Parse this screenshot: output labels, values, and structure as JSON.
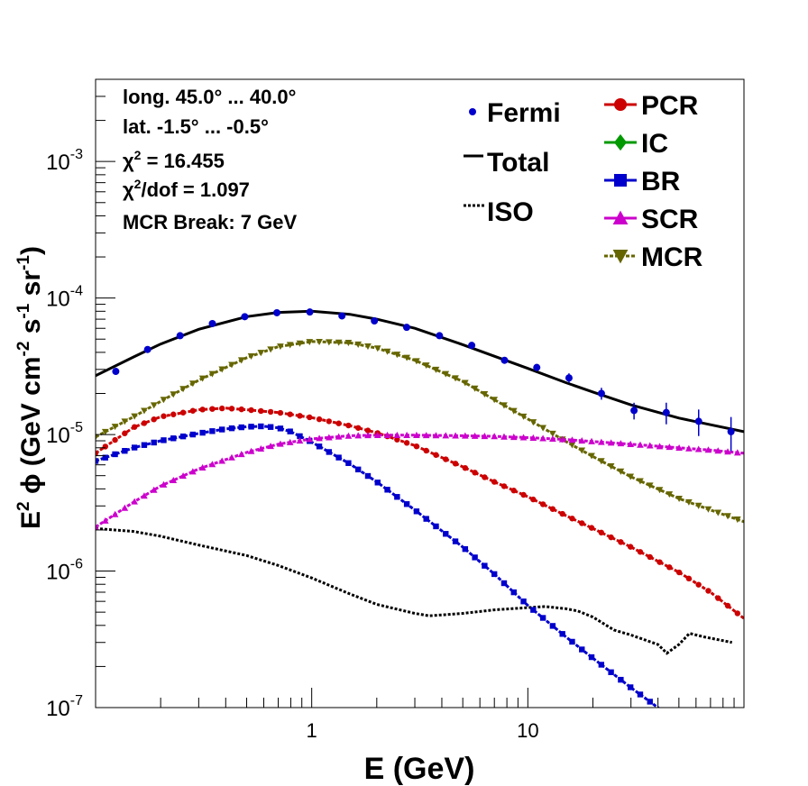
{
  "chart_data": {
    "type": "line",
    "xlabel": "E (GeV)",
    "ylabel_parts": {
      "a": "E",
      "b": "2",
      "c": " ϕ (GeV cm",
      "d": "-2",
      "e": " s",
      "f": "-1",
      "g": " sr",
      "h": "-1",
      "i": ")"
    },
    "xscale": "log",
    "yscale": "log",
    "xlim": [
      0.1,
      100
    ],
    "ylim": [
      1e-07,
      0.004
    ],
    "grid": false,
    "x_ticks": [
      {
        "label": "1",
        "value": 1
      },
      {
        "label": "10",
        "value": 10
      }
    ],
    "y_ticks": [
      {
        "base": "10",
        "exp": "-7",
        "value": 1e-07
      },
      {
        "base": "10",
        "exp": "-6",
        "value": 1e-06
      },
      {
        "base": "10",
        "exp": "-5",
        "value": 1e-05
      },
      {
        "base": "10",
        "exp": "-4",
        "value": 0.0001
      },
      {
        "base": "10",
        "exp": "-3",
        "value": 0.001
      }
    ],
    "info": {
      "line1": "long. 45.0° ... 40.0°",
      "line2": "lat. -1.5° ... -0.5°",
      "chi2_sym": "χ",
      "chi2_exp": "2",
      "chi2_rest": " = 16.455",
      "chi2dof_exp": "2",
      "chi2dof_rest": "/dof = 1.097",
      "break": "MCR Break:  7 GeV"
    },
    "legend_left": [
      {
        "label": "Fermi",
        "style": "point",
        "color": "#0000cc"
      },
      {
        "label": "Total",
        "style": "solid-line",
        "color": "#000000"
      },
      {
        "label": "ISO",
        "style": "dotted-line",
        "color": "#000000"
      }
    ],
    "legend_right": [
      {
        "label": "PCR",
        "marker": "circle",
        "color": "#cc0000"
      },
      {
        "label": "IC",
        "marker": "diamond",
        "color": "#009900"
      },
      {
        "label": "BR",
        "marker": "square",
        "color": "#0000cc"
      },
      {
        "label": "SCR",
        "marker": "triangle-up",
        "color": "#cc00cc"
      },
      {
        "label": "MCR",
        "marker": "triangle-down",
        "color": "#666600"
      }
    ],
    "fermi": {
      "color": "#0000cc",
      "x": [
        0.124,
        0.174,
        0.246,
        0.347,
        0.49,
        0.69,
        0.98,
        1.38,
        1.95,
        2.75,
        3.9,
        5.5,
        7.8,
        11.0,
        15.5,
        21.9,
        31.0,
        43.7,
        61.7,
        87.1
      ],
      "y": [
        2.9e-05,
        4.2e-05,
        5.3e-05,
        6.5e-05,
        7.3e-05,
        7.8e-05,
        7.9e-05,
        7.4e-05,
        6.8e-05,
        6.1e-05,
        5.3e-05,
        4.5e-05,
        3.5e-05,
        3.1e-05,
        2.6e-05,
        2e-05,
        1.5e-05,
        1.45e-05,
        1.25e-05,
        1.05e-05
      ],
      "err": [
        0.03,
        0.03,
        0.03,
        0.03,
        0.03,
        0.03,
        0.03,
        0.03,
        0.03,
        0.03,
        0.04,
        0.04,
        0.05,
        0.06,
        0.08,
        0.1,
        0.14,
        0.18,
        0.22,
        0.28
      ]
    },
    "series": [
      {
        "name": "Total",
        "style": "solid",
        "color": "#000000",
        "x": [
          0.1,
          0.15,
          0.2,
          0.3,
          0.5,
          0.7,
          1.0,
          1.5,
          2.0,
          3.0,
          5.0,
          7.0,
          10,
          15,
          20,
          30,
          50,
          70,
          100
        ],
        "y": [
          2.7e-05,
          3.7e-05,
          4.6e-05,
          5.9e-05,
          7.3e-05,
          7.85e-05,
          8e-05,
          7.6e-05,
          7e-05,
          6e-05,
          4.55e-05,
          3.75e-05,
          3.05e-05,
          2.4e-05,
          2.05e-05,
          1.65e-05,
          1.32e-05,
          1.18e-05,
          1.05e-05
        ]
      },
      {
        "name": "MCR",
        "style": "dashed",
        "color": "#666600",
        "marker": "triangle-down",
        "x": [
          0.1,
          0.15,
          0.2,
          0.3,
          0.5,
          0.7,
          1.0,
          1.5,
          2.0,
          3.0,
          5.0,
          7.0,
          10,
          15,
          20,
          30,
          50,
          70,
          100
        ],
        "y": [
          9.6e-06,
          1.35e-05,
          1.75e-05,
          2.5e-05,
          3.65e-05,
          4.4e-05,
          4.8e-05,
          4.7e-05,
          4.3e-05,
          3.5e-05,
          2.45e-05,
          1.8e-05,
          1.3e-05,
          8.9e-06,
          6.9e-06,
          4.9e-06,
          3.4e-06,
          2.8e-06,
          2.3e-06
        ]
      },
      {
        "name": "PCR",
        "style": "dashed",
        "color": "#cc0000",
        "marker": "circle",
        "x": [
          0.1,
          0.15,
          0.2,
          0.3,
          0.4,
          0.5,
          0.7,
          1.0,
          1.5,
          2.0,
          3.0,
          5.0,
          7.0,
          10,
          15,
          20,
          30,
          50,
          70,
          100
        ],
        "y": [
          7.3e-06,
          1.13e-05,
          1.35e-05,
          1.52e-05,
          1.56e-05,
          1.52e-05,
          1.45e-05,
          1.33e-05,
          1.16e-05,
          1.03e-05,
          8.3e-06,
          5.8e-06,
          4.5e-06,
          3.5e-06,
          2.55e-06,
          2.05e-06,
          1.5e-06,
          9.8e-07,
          7e-07,
          4.5e-07
        ]
      },
      {
        "name": "BR",
        "style": "dashed",
        "color": "#0000cc",
        "marker": "square",
        "x": [
          0.1,
          0.15,
          0.2,
          0.3,
          0.4,
          0.5,
          0.6,
          0.7,
          0.8,
          1.0,
          1.5,
          2.0,
          3.0,
          5.0,
          7.0,
          10,
          15,
          20,
          30,
          40,
          44
        ],
        "y": [
          6.4e-06,
          8e-06,
          9e-06,
          1.02e-05,
          1.1e-05,
          1.14e-05,
          1.15e-05,
          1.12e-05,
          1.05e-05,
          8.8e-06,
          6.1e-06,
          4.5e-06,
          2.8e-06,
          1.5e-06,
          9.5e-07,
          5.6e-07,
          3.3e-07,
          2.3e-07,
          1.4e-07,
          1e-07,
          9e-08
        ]
      },
      {
        "name": "SCR",
        "style": "dashed",
        "color": "#cc00cc",
        "marker": "triangle-up",
        "x": [
          0.1,
          0.15,
          0.2,
          0.3,
          0.5,
          0.7,
          1.0,
          1.5,
          2.0,
          3.0,
          5.0,
          7.0,
          10,
          15,
          20,
          30,
          50,
          70,
          100
        ],
        "y": [
          2.1e-06,
          3.2e-06,
          4.2e-06,
          5.6e-06,
          7.4e-06,
          8.5e-06,
          9.3e-06,
          9.8e-06,
          9.9e-06,
          9.9e-06,
          9.8e-06,
          9.7e-06,
          9.5e-06,
          9.2e-06,
          8.9e-06,
          8.5e-06,
          8e-06,
          7.7e-06,
          7.3e-06
        ]
      },
      {
        "name": "ISO",
        "style": "dotted",
        "color": "#000000",
        "x": [
          0.1,
          0.15,
          0.2,
          0.3,
          0.5,
          0.7,
          1.0,
          1.5,
          2.0,
          3.0,
          3.5,
          5.0,
          7.0,
          10,
          12,
          15,
          17,
          20,
          25,
          30,
          40,
          44,
          50,
          56,
          65,
          88
        ],
        "y": [
          2.05e-06,
          1.95e-06,
          1.8e-06,
          1.55e-06,
          1.3e-06,
          1.1e-06,
          8.9e-07,
          6.8e-07,
          5.7e-07,
          4.9e-07,
          4.7e-07,
          4.9e-07,
          5.2e-07,
          5.4e-07,
          5.5e-07,
          5.3e-07,
          5.1e-07,
          4.6e-07,
          3.7e-07,
          3.4e-07,
          2.9e-07,
          2.5e-07,
          2.9e-07,
          3.5e-07,
          3.3e-07,
          3e-07
        ]
      }
    ]
  }
}
